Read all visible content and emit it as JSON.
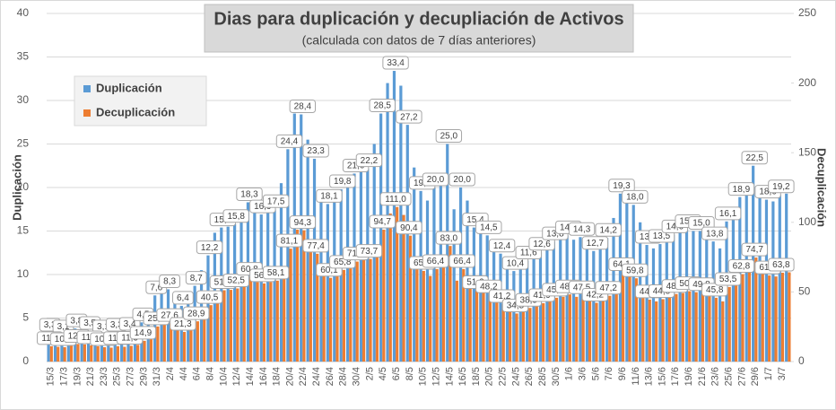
{
  "chart_data": {
    "type": "bar",
    "title": "Dias para duplicación y decupliación de Activos",
    "subtitle": "(calculada con datos de 7 días anteriores)",
    "y_label": "Duplicación",
    "y2_label": "Decuplicación",
    "legend": "upper left",
    "grid": true,
    "categories": [
      "15/3",
      null,
      "17/3",
      null,
      "19/3",
      null,
      "21/3",
      null,
      "23/3",
      null,
      "25/3",
      null,
      "27/3",
      null,
      "29/3",
      null,
      "31/3",
      null,
      "2/4",
      null,
      "4/4",
      null,
      "6/4",
      null,
      "8/4",
      null,
      "10/4",
      null,
      "12/4",
      null,
      "14/4",
      null,
      "16/4",
      null,
      "18/4",
      null,
      "20/4",
      null,
      "22/4",
      null,
      "24/4",
      null,
      "26/4",
      null,
      "28/4",
      null,
      "30/4",
      null,
      "2/5",
      null,
      "4/5",
      null,
      "6/5",
      null,
      "8/5",
      null,
      "10/5",
      null,
      "12/5",
      null,
      "14/5",
      null,
      "16/5",
      null,
      "18/5",
      null,
      "20/5",
      null,
      "22/5",
      null,
      "24/5",
      null,
      "26/5",
      null,
      "28/5",
      null,
      "30/5",
      null,
      "1/6",
      null,
      "3/6",
      null,
      "5/6",
      null,
      "7/6",
      null,
      "9/6",
      null,
      "11/6",
      null,
      "13/6",
      null,
      "15/6",
      null,
      "17/6",
      null,
      "19/6",
      null,
      "21/6",
      null,
      "23/6",
      null,
      "25/6",
      null,
      "27/6",
      null,
      "29/6",
      null,
      "1/7",
      null,
      "3/7",
      null
    ],
    "ylim": [
      0,
      40
    ],
    "yticks": [
      0,
      5,
      10,
      15,
      20,
      25,
      30,
      35,
      40
    ],
    "y2lim": [
      0,
      250
    ],
    "y2ticks": [
      0,
      50,
      100,
      150,
      200,
      250
    ],
    "series": [
      {
        "name": "Duplicación",
        "color": "#5b9bd5",
        "values": [
          3.3,
          3.2,
          3.1,
          3.4,
          3.8,
          3.7,
          3.5,
          3.3,
          3.1,
          3.0,
          3.3,
          3.2,
          3.4,
          3.6,
          4.5,
          6.0,
          7.6,
          8.0,
          8.3,
          7.2,
          6.4,
          7.0,
          8.7,
          10.5,
          12.2,
          14.8,
          15.4,
          15.5,
          15.8,
          17.0,
          18.3,
          17.2,
          16.9,
          17.2,
          17.5,
          20.5,
          24.4,
          28.5,
          28.4,
          25.5,
          23.3,
          19.0,
          18.1,
          18.5,
          19.8,
          20.5,
          21.6,
          22.0,
          22.2,
          25.0,
          28.5,
          32.0,
          33.4,
          31.7,
          27.2,
          22.3,
          19.6,
          18.5,
          20.0,
          21.5,
          25.0,
          17.5,
          20.0,
          18.5,
          15.4,
          15.0,
          14.5,
          13.5,
          12.4,
          11.0,
          10.4,
          10.8,
          11.6,
          12.0,
          12.6,
          13.2,
          13.8,
          14.0,
          14.5,
          14.0,
          14.3,
          13.5,
          12.7,
          13.0,
          14.2,
          16.5,
          19.3,
          19.0,
          18.0,
          16.0,
          13.4,
          13.0,
          13.5,
          13.8,
          14.6,
          14.8,
          15.2,
          15.0,
          15.0,
          14.4,
          13.8,
          13.0,
          16.1,
          17.0,
          18.9,
          19.5,
          22.5,
          19.5,
          18.6,
          18.4,
          19.2,
          19.3
        ],
        "value_labels": [
          "3,3",
          null,
          "3,1",
          null,
          "3,8",
          null,
          "3,5",
          null,
          "3,1",
          null,
          "3,3",
          null,
          "3,4",
          null,
          "4,5",
          null,
          "7,6",
          null,
          "8,3",
          null,
          "6,4",
          null,
          "8,7",
          null,
          "12,2",
          null,
          "15,4",
          null,
          "15,8",
          null,
          "18,3",
          null,
          "16,9",
          null,
          "17,5",
          null,
          "24,4",
          null,
          "28,4",
          null,
          "23,3",
          null,
          "18,1",
          null,
          "19,8",
          null,
          "21,6",
          null,
          "22,2",
          null,
          "28,5",
          null,
          "33,4",
          null,
          "27,2",
          null,
          "19,6",
          null,
          "20,0",
          null,
          "25,0",
          null,
          "20,0",
          null,
          "15,4",
          null,
          "14,5",
          null,
          "12,4",
          null,
          "10,4",
          null,
          "11,6",
          null,
          "12,6",
          null,
          "13,8",
          null,
          "14,5",
          null,
          "14,3",
          null,
          "12,7",
          null,
          "14,2",
          null,
          "19,3",
          null,
          "18,0",
          null,
          "13,4",
          null,
          "13,5",
          null,
          "14,6",
          null,
          "15,2",
          null,
          "15,0",
          null,
          "13,8",
          null,
          "16,1",
          null,
          "18,9",
          null,
          "22,5",
          null,
          "18,6",
          null,
          "19,2",
          null
        ]
      },
      {
        "name": "Decuplicación",
        "color": "#ed7d31",
        "axis": "y2",
        "values": [
          11.0,
          10.6,
          10.3,
          11.3,
          12.6,
          12.3,
          11.6,
          11.0,
          10.3,
          10.0,
          11.0,
          10.6,
          11.3,
          12.0,
          14.9,
          19.9,
          25.2,
          26.6,
          27.6,
          23.9,
          21.3,
          23.3,
          28.9,
          34.9,
          40.5,
          49.2,
          51.2,
          51.5,
          52.5,
          56.5,
          60.8,
          57.1,
          56.1,
          57.1,
          58.1,
          68.1,
          81.1,
          94.7,
          94.3,
          84.7,
          77.4,
          63.1,
          60.1,
          61.5,
          65.8,
          68.1,
          71.8,
          73.1,
          73.7,
          83.0,
          94.7,
          106.3,
          111.0,
          105.3,
          90.4,
          74.1,
          65.1,
          61.5,
          66.4,
          71.4,
          83.0,
          58.1,
          66.4,
          61.5,
          51.2,
          49.8,
          48.2,
          44.8,
          41.2,
          36.5,
          34.5,
          35.9,
          38.5,
          39.9,
          41.9,
          43.8,
          45.8,
          46.5,
          48.2,
          46.5,
          47.5,
          44.8,
          42.2,
          43.2,
          47.2,
          54.8,
          64.1,
          63.1,
          59.8,
          53.2,
          44.5,
          43.2,
          44.8,
          45.8,
          48.5,
          49.2,
          50.5,
          49.8,
          49.8,
          47.8,
          45.8,
          43.2,
          53.5,
          56.5,
          62.8,
          64.8,
          74.7,
          64.8,
          61.8,
          61.1,
          63.8,
          64.1
        ],
        "value_labels": [
          "11,0",
          null,
          "10,3",
          null,
          "12,6",
          null,
          "11,6",
          null,
          "10,3",
          null,
          "11,0",
          null,
          "11,3",
          null,
          "14,9",
          null,
          "25,2",
          null,
          "27,6",
          null,
          "21,3",
          null,
          "28,9",
          null,
          "40,5",
          null,
          "51,2",
          null,
          "52,5",
          null,
          "60,8",
          null,
          "56,1",
          null,
          "58,1",
          null,
          "81,1",
          null,
          "94,3",
          null,
          "77,4",
          null,
          "60,1",
          null,
          "65,8",
          null,
          "71,8",
          null,
          "73,7",
          null,
          "94,7",
          null,
          "111,0",
          null,
          "90,4",
          null,
          "65,1",
          null,
          "66,4",
          null,
          "83,0",
          null,
          "66,4",
          null,
          "51,2",
          null,
          "48,2",
          null,
          "41,2",
          null,
          "34,5",
          null,
          "38,5",
          null,
          "41,9",
          null,
          "45,8",
          null,
          "48,2",
          null,
          "47,5",
          null,
          "42,2",
          null,
          "47,2",
          null,
          "64,1",
          null,
          "59,8",
          null,
          "44,5",
          null,
          "44,8",
          null,
          "48,5",
          null,
          "50,5",
          null,
          "49,8",
          null,
          "45,8",
          null,
          "53,5",
          null,
          "62,8",
          null,
          "74,7",
          null,
          "61,8",
          null,
          "63,8",
          null
        ]
      }
    ]
  }
}
